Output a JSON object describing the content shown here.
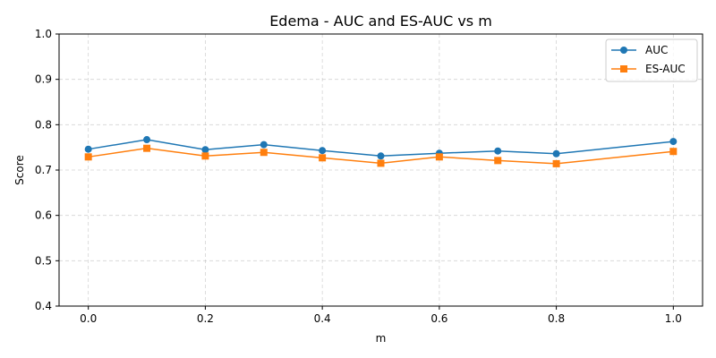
{
  "chart_data": {
    "type": "line",
    "title": "Edema - AUC and ES-AUC vs m",
    "xlabel": "m",
    "ylabel": "Score",
    "xlim": [
      -0.05,
      1.05
    ],
    "ylim": [
      0.4,
      1.0
    ],
    "xticks": [
      "0.0",
      "0.2",
      "0.4",
      "0.6",
      "0.8",
      "1.0"
    ],
    "yticks": [
      "0.4",
      "0.5",
      "0.6",
      "0.7",
      "0.8",
      "0.9",
      "1.0"
    ],
    "grid": true,
    "legend_position": "top-right",
    "x": [
      0.0,
      0.1,
      0.2,
      0.3,
      0.4,
      0.5,
      0.6,
      0.7,
      0.8,
      1.0
    ],
    "series": [
      {
        "name": "AUC",
        "color": "#1f77b4",
        "marker": "circle",
        "values": [
          0.746,
          0.767,
          0.745,
          0.756,
          0.743,
          0.731,
          0.737,
          0.742,
          0.736,
          0.763
        ]
      },
      {
        "name": "ES-AUC",
        "color": "#ff7f0e",
        "marker": "square",
        "values": [
          0.729,
          0.748,
          0.731,
          0.739,
          0.727,
          0.715,
          0.729,
          0.721,
          0.714,
          0.741
        ]
      }
    ]
  }
}
